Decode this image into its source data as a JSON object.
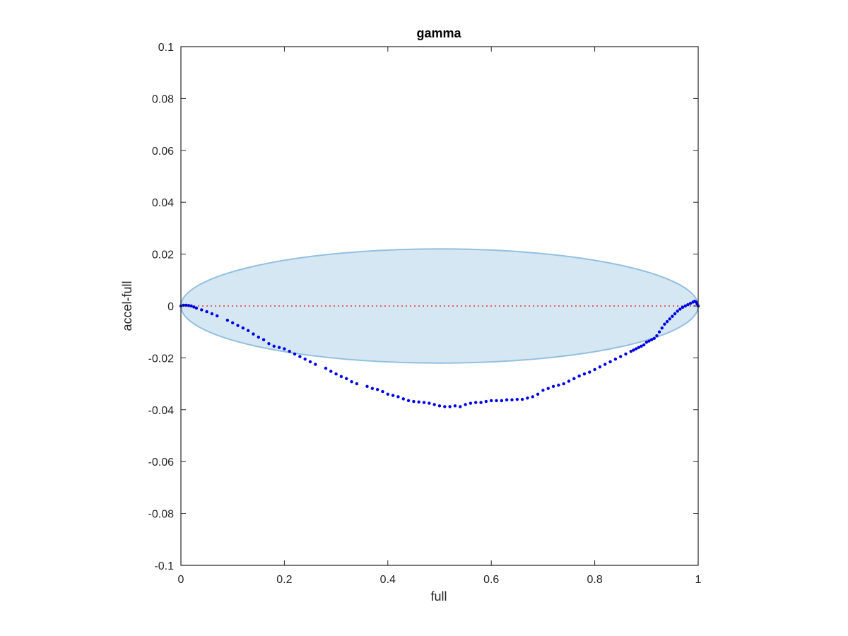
{
  "chart_data": {
    "type": "scatter",
    "title": "gamma",
    "xlabel": "full",
    "ylabel": "accel-full",
    "xlim": [
      0,
      1
    ],
    "ylim": [
      -0.1,
      0.1
    ],
    "xticks": [
      0,
      0.2,
      0.4,
      0.6,
      0.8,
      1
    ],
    "xtick_labels": [
      "0",
      "0.2",
      "0.4",
      "0.6",
      "0.8",
      "1"
    ],
    "yticks": [
      -0.1,
      -0.08,
      -0.06,
      -0.04,
      -0.02,
      0,
      0.02,
      0.04,
      0.06,
      0.08,
      0.1
    ],
    "ytick_labels": [
      "-0.1",
      "-0.08",
      "-0.06",
      "-0.04",
      "-0.02",
      "0",
      "0.02",
      "0.04",
      "0.06",
      "0.08",
      "0.1"
    ],
    "grid": false,
    "ellipse": {
      "center": [
        0.5,
        0
      ],
      "x_radius": 0.5,
      "y_radius": 0.022,
      "fill": "#d6e7f4",
      "stroke": "#92c0e0"
    },
    "reference_line": {
      "y": 0,
      "color": "#e8332c",
      "style": "dotted"
    },
    "series": [
      {
        "color": "#0000e6",
        "marker": "dot",
        "x": [
          0.0,
          0.005,
          0.01,
          0.015,
          0.02,
          0.025,
          0.03,
          0.04,
          0.05,
          0.06,
          0.07,
          0.09,
          0.1,
          0.11,
          0.12,
          0.13,
          0.14,
          0.15,
          0.16,
          0.17,
          0.18,
          0.19,
          0.2,
          0.21,
          0.22,
          0.23,
          0.24,
          0.25,
          0.26,
          0.28,
          0.29,
          0.3,
          0.31,
          0.32,
          0.33,
          0.34,
          0.36,
          0.37,
          0.38,
          0.39,
          0.4,
          0.41,
          0.42,
          0.43,
          0.44,
          0.45,
          0.46,
          0.47,
          0.48,
          0.49,
          0.5,
          0.51,
          0.52,
          0.53,
          0.54,
          0.55,
          0.56,
          0.57,
          0.58,
          0.59,
          0.6,
          0.61,
          0.62,
          0.63,
          0.64,
          0.65,
          0.66,
          0.67,
          0.68,
          0.69,
          0.7,
          0.71,
          0.72,
          0.73,
          0.74,
          0.75,
          0.76,
          0.77,
          0.78,
          0.79,
          0.8,
          0.81,
          0.82,
          0.83,
          0.84,
          0.85,
          0.86,
          0.87,
          0.875,
          0.88,
          0.885,
          0.89,
          0.895,
          0.9,
          0.905,
          0.91,
          0.915,
          0.92,
          0.925,
          0.93,
          0.935,
          0.94,
          0.945,
          0.95,
          0.955,
          0.96,
          0.965,
          0.97,
          0.975,
          0.98,
          0.985,
          0.99,
          0.993,
          0.996,
          0.998,
          1.0
        ],
        "y": [
          0.0,
          0.0003,
          0.0003,
          0.0002,
          0.0,
          -0.0004,
          -0.0008,
          -0.0015,
          -0.0022,
          -0.003,
          -0.0038,
          -0.0055,
          -0.0065,
          -0.0075,
          -0.0085,
          -0.0095,
          -0.0108,
          -0.012,
          -0.013,
          -0.0145,
          -0.0155,
          -0.016,
          -0.0165,
          -0.0175,
          -0.0185,
          -0.0195,
          -0.0205,
          -0.0215,
          -0.0225,
          -0.024,
          -0.0252,
          -0.0262,
          -0.0272,
          -0.028,
          -0.0292,
          -0.03,
          -0.031,
          -0.0318,
          -0.0322,
          -0.033,
          -0.034,
          -0.0345,
          -0.035,
          -0.0358,
          -0.0365,
          -0.0368,
          -0.037,
          -0.0372,
          -0.0375,
          -0.038,
          -0.0385,
          -0.0388,
          -0.0388,
          -0.0385,
          -0.0388,
          -0.038,
          -0.0375,
          -0.0372,
          -0.0372,
          -0.0368,
          -0.0365,
          -0.0365,
          -0.0365,
          -0.0362,
          -0.0362,
          -0.036,
          -0.036,
          -0.0355,
          -0.035,
          -0.034,
          -0.0325,
          -0.0318,
          -0.031,
          -0.0305,
          -0.03,
          -0.029,
          -0.028,
          -0.027,
          -0.0262,
          -0.0255,
          -0.0245,
          -0.0235,
          -0.0225,
          -0.0215,
          -0.0205,
          -0.0195,
          -0.0185,
          -0.0175,
          -0.017,
          -0.0165,
          -0.016,
          -0.0155,
          -0.015,
          -0.014,
          -0.0135,
          -0.013,
          -0.0125,
          -0.0115,
          -0.01,
          -0.0085,
          -0.007,
          -0.006,
          -0.005,
          -0.004,
          -0.003,
          -0.002,
          -0.0012,
          -0.0005,
          0.0,
          0.0005,
          0.001,
          0.0015,
          0.0018,
          0.0015,
          0.0008,
          0.0
        ]
      }
    ]
  }
}
